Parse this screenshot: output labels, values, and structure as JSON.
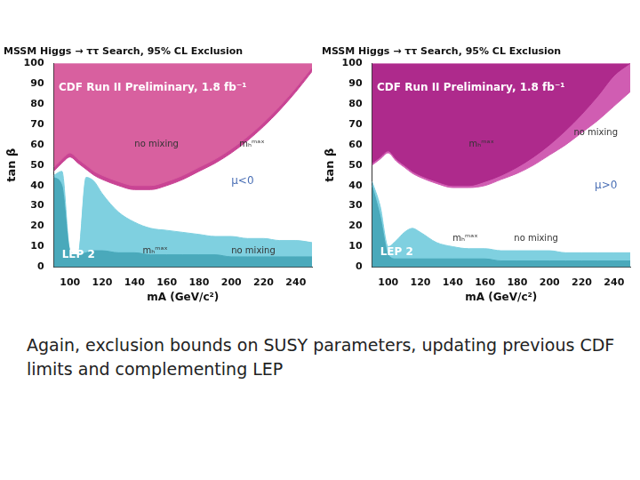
{
  "chart_data": [
    {
      "type": "line",
      "title": "MSSM Higgs → ττ Search, 95% CL Exclusion",
      "x_label": "mA (GeV/c²)",
      "y_label": "tan β",
      "grid": false,
      "x": [
        90,
        95,
        100,
        105,
        110,
        115,
        120,
        130,
        140,
        150,
        160,
        170,
        180,
        190,
        200,
        210,
        220,
        230,
        240,
        250
      ],
      "xlim": [
        90,
        250
      ],
      "xticks": [
        100,
        120,
        140,
        160,
        180,
        200,
        220,
        240
      ],
      "ylim": [
        0,
        100
      ],
      "yticks": [
        0,
        10,
        20,
        30,
        40,
        50,
        60,
        70,
        80,
        90,
        100
      ],
      "series": [
        {
          "name": "no mixing",
          "color": "#c94494",
          "values": [
            47,
            51,
            54,
            51,
            48,
            45,
            43,
            40,
            38,
            38,
            40,
            43,
            47,
            51,
            56,
            62,
            69,
            77,
            86,
            96
          ]
        },
        {
          "name": "mₕᵐᵃˣ",
          "color": "#d8609f",
          "values": [
            49,
            53,
            56,
            53,
            50,
            47,
            45,
            42,
            40,
            40,
            42,
            45,
            49,
            53,
            58,
            64,
            71,
            79,
            88,
            98
          ]
        },
        {
          "name": "mₕᵐᵃˣ",
          "color": "#7fd0e0",
          "values": [
            45,
            47,
            8,
            6,
            44,
            42,
            36,
            27,
            22,
            19,
            18,
            17,
            16,
            15,
            15,
            14,
            14,
            13,
            13,
            12
          ]
        },
        {
          "name": "no mixing",
          "color": "#4aa9bb",
          "values": [
            44,
            40,
            8,
            6,
            7,
            8,
            8,
            7,
            7,
            6,
            6,
            6,
            6,
            6,
            5,
            5,
            5,
            5,
            5,
            5
          ]
        }
      ],
      "annotations": [
        "CDF Run II Preliminary, 1.8 fb⁻¹",
        "μ<0",
        "LEP 2"
      ]
    },
    {
      "type": "line",
      "title": "MSSM Higgs → ττ Search, 95% CL Exclusion",
      "x_label": "mA (GeV/c²)",
      "y_label": "tan β",
      "grid": false,
      "x": [
        90,
        95,
        100,
        105,
        110,
        115,
        120,
        130,
        140,
        150,
        160,
        170,
        180,
        190,
        200,
        210,
        220,
        230,
        240,
        250
      ],
      "xlim": [
        90,
        250
      ],
      "xticks": [
        100,
        120,
        140,
        160,
        180,
        200,
        220,
        240
      ],
      "ylim": [
        0,
        100
      ],
      "yticks": [
        0,
        10,
        20,
        30,
        40,
        50,
        60,
        70,
        80,
        90,
        100
      ],
      "series": [
        {
          "name": "no mixing",
          "color": "#d05db2",
          "values": [
            50,
            53,
            56,
            52,
            49,
            46,
            44,
            41,
            39,
            39,
            40,
            43,
            46,
            50,
            55,
            60,
            66,
            72,
            79,
            86
          ]
        },
        {
          "name": "mₕᵐᵃˣ",
          "color": "#ae2a8c",
          "values": [
            51,
            54,
            57,
            53,
            50,
            47,
            45,
            42,
            40,
            40,
            42,
            45,
            49,
            54,
            60,
            67,
            75,
            84,
            94,
            100
          ]
        },
        {
          "name": "mₕᵐᵃˣ",
          "color": "#7fd0e0",
          "values": [
            42,
            30,
            10,
            13,
            17,
            19,
            17,
            12,
            10,
            9,
            9,
            8,
            8,
            8,
            8,
            7,
            7,
            7,
            7,
            7
          ]
        },
        {
          "name": "no mixing",
          "color": "#4aa9bb",
          "values": [
            40,
            25,
            6,
            4,
            4,
            4,
            4,
            4,
            4,
            4,
            4,
            3,
            3,
            3,
            3,
            3,
            3,
            3,
            3,
            3
          ]
        }
      ],
      "annotations": [
        "CDF Run II Preliminary, 1.8 fb⁻¹",
        "μ>0",
        "LEP 2"
      ]
    }
  ],
  "caption": "Again, exclusion bounds on SUSY parameters, updating previous CDF limits and complementing LEP"
}
